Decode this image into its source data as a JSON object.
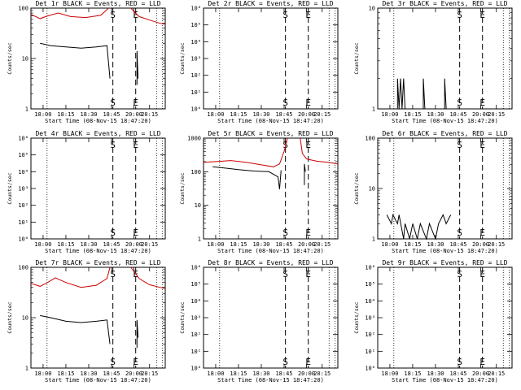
{
  "chart_data": [
    {
      "type": "line",
      "title": "Det 1r BLACK = Events, RED = LLD",
      "xlabel": "Start Time (08-Nov-15 18:47:20)",
      "ylabel": "Counts/sec",
      "yscale": "log",
      "ylim": [
        1,
        100
      ],
      "yticks": [
        {
          "v": 1,
          "label": "1"
        },
        {
          "v": 10,
          "label": "10"
        },
        {
          "v": 100,
          "label": "100"
        }
      ],
      "xlim": [
        "17:52",
        "20:30"
      ],
      "xticks": [
        "18:00",
        "18:15",
        "18:30",
        "18:45",
        "20:00",
        "20:15"
      ],
      "markers": [
        {
          "x": "18:46",
          "label": "S"
        },
        {
          "x": "19:55",
          "label": "E"
        }
      ],
      "series": [
        {
          "name": "Events",
          "color": "#000000",
          "points": [
            [
              "17:58",
              20
            ],
            [
              "18:05",
              18
            ],
            [
              "18:15",
              17
            ],
            [
              "18:25",
              16
            ],
            [
              "18:35",
              17
            ],
            [
              "18:42",
              18
            ],
            [
              "18:44",
              4
            ]
          ]
        },
        {
          "name": "LLD",
          "color": "#cc0000",
          "points": [
            [
              "17:52",
              75
            ],
            [
              "17:58",
              62
            ],
            [
              "18:03",
              70
            ],
            [
              "18:10",
              80
            ],
            [
              "18:18",
              68
            ],
            [
              "18:28",
              65
            ],
            [
              "18:38",
              72
            ],
            [
              "18:43",
              100
            ]
          ]
        },
        {
          "name": "LLD (after)",
          "color": "#cc0000",
          "points": [
            [
              "19:57",
              100
            ],
            [
              "20:05",
              68
            ],
            [
              "20:15",
              58
            ],
            [
              "20:25",
              50
            ],
            [
              "20:30",
              48
            ]
          ]
        },
        {
          "name": "Events (after)",
          "color": "#000000",
          "points": [
            [
              "20:03",
              3
            ],
            [
              "20:03",
              14
            ],
            [
              "20:04",
              4
            ]
          ]
        }
      ]
    },
    {
      "type": "line",
      "title": "Det 2r BLACK = Events, RED = LLD",
      "xlabel": "Start Time (08-Nov-15 18:47:20)",
      "ylabel": "Counts/sec",
      "yscale": "log",
      "ylim": [
        1,
        1000000
      ],
      "yticks": [
        {
          "v": 1,
          "label": "10⁰"
        },
        {
          "v": 10,
          "label": "10¹"
        },
        {
          "v": 100,
          "label": "10²"
        },
        {
          "v": 1000,
          "label": "10³"
        },
        {
          "v": 10000,
          "label": "10⁴"
        },
        {
          "v": 100000,
          "label": "10⁵"
        },
        {
          "v": 1000000,
          "label": "10⁶"
        }
      ],
      "xlim": [
        "17:52",
        "20:30"
      ],
      "xticks": [
        "18:00",
        "18:15",
        "18:30",
        "18:45",
        "20:00",
        "20:15"
      ],
      "markers": [
        {
          "x": "18:46",
          "label": "S"
        },
        {
          "x": "19:55",
          "label": "E"
        }
      ],
      "series": []
    },
    {
      "type": "line",
      "title": "Det 3r BLACK = Events, RED = LLD",
      "xlabel": "Start Time (08-Nov-15 18:47:20)",
      "ylabel": "Counts/sec",
      "yscale": "log",
      "ylim": [
        1,
        10
      ],
      "yticks": [
        {
          "v": 1,
          "label": "1"
        },
        {
          "v": 10,
          "label": "10"
        }
      ],
      "xlim": [
        "17:52",
        "20:30"
      ],
      "xticks": [
        "18:00",
        "18:15",
        "18:30",
        "18:45",
        "20:00",
        "20:15"
      ],
      "markers": [
        {
          "x": "18:46",
          "label": "S"
        },
        {
          "x": "19:55",
          "label": "E"
        }
      ],
      "series": [
        {
          "name": "Events",
          "color": "#000000",
          "points": [
            [
              "18:05",
              1
            ],
            [
              "18:05",
              2
            ],
            [
              "18:06",
              1
            ],
            [
              "18:07",
              2
            ],
            [
              "18:08",
              1
            ],
            [
              "18:09",
              2
            ],
            [
              "18:10",
              1
            ],
            [
              "18:22",
              1
            ],
            [
              "18:22",
              2
            ],
            [
              "18:23",
              1
            ],
            [
              "18:36",
              1
            ],
            [
              "18:36",
              2
            ],
            [
              "18:37",
              1
            ]
          ]
        }
      ]
    },
    {
      "type": "line",
      "title": "Det 4r BLACK = Events, RED = LLD",
      "xlabel": "Start Time (08-Nov-15 18:47:20)",
      "ylabel": "Counts/sec",
      "yscale": "log",
      "ylim": [
        1,
        1000000
      ],
      "yticks": [
        {
          "v": 1,
          "label": "10⁰"
        },
        {
          "v": 10,
          "label": "10¹"
        },
        {
          "v": 100,
          "label": "10²"
        },
        {
          "v": 1000,
          "label": "10³"
        },
        {
          "v": 10000,
          "label": "10⁴"
        },
        {
          "v": 100000,
          "label": "10⁵"
        },
        {
          "v": 1000000,
          "label": "10⁶"
        }
      ],
      "xlim": [
        "17:52",
        "20:30"
      ],
      "xticks": [
        "18:00",
        "18:15",
        "18:30",
        "18:45",
        "20:00",
        "20:15"
      ],
      "markers": [
        {
          "x": "18:46",
          "label": "S"
        },
        {
          "x": "19:55",
          "label": "E"
        }
      ],
      "series": []
    },
    {
      "type": "line",
      "title": "Det 5r BLACK = Events, RED = LLD",
      "xlabel": "Start Time (08-Nov-15 18:47:20)",
      "ylabel": "Counts/sec",
      "yscale": "log",
      "ylim": [
        1,
        1000
      ],
      "yticks": [
        {
          "v": 1,
          "label": "1"
        },
        {
          "v": 10,
          "label": "10"
        },
        {
          "v": 100,
          "label": "100"
        },
        {
          "v": 1000,
          "label": "1000"
        }
      ],
      "xlim": [
        "17:52",
        "20:30"
      ],
      "xticks": [
        "18:00",
        "18:15",
        "18:30",
        "18:45",
        "20:00",
        "20:15"
      ],
      "markers": [
        {
          "x": "18:46",
          "label": "S"
        },
        {
          "x": "19:55",
          "label": "E"
        }
      ],
      "series": [
        {
          "name": "LLD",
          "color": "#cc0000",
          "points": [
            [
              "17:52",
              190
            ],
            [
              "18:00",
              200
            ],
            [
              "18:10",
              215
            ],
            [
              "18:20",
              190
            ],
            [
              "18:30",
              160
            ],
            [
              "18:38",
              140
            ],
            [
              "18:42",
              170
            ],
            [
              "18:45",
              400
            ],
            [
              "18:46",
              1000
            ]
          ]
        },
        {
          "name": "LLD (after)",
          "color": "#cc0000",
          "points": [
            [
              "19:54",
              1000
            ],
            [
              "19:56",
              350
            ],
            [
              "20:00",
              240
            ],
            [
              "20:10",
              205
            ],
            [
              "20:20",
              190
            ],
            [
              "20:30",
              170
            ]
          ]
        },
        {
          "name": "Events",
          "color": "#000000",
          "points": [
            [
              "17:58",
              140
            ],
            [
              "18:05",
              130
            ],
            [
              "18:15",
              115
            ],
            [
              "18:25",
              105
            ],
            [
              "18:35",
              100
            ],
            [
              "18:41",
              70
            ],
            [
              "18:42",
              30
            ],
            [
              "18:43",
              110
            ]
          ]
        },
        {
          "name": "Events (after)",
          "color": "#000000",
          "points": [
            [
              "19:58",
              40
            ],
            [
              "19:58",
              170
            ],
            [
              "19:59",
              100
            ]
          ]
        }
      ]
    },
    {
      "type": "line",
      "title": "Det 6r BLACK = Events, RED = LLD",
      "xlabel": "Start Time (08-Nov-15 18:47:20)",
      "ylabel": "Counts/sec",
      "yscale": "log",
      "ylim": [
        1,
        100
      ],
      "yticks": [
        {
          "v": 1,
          "label": "1"
        },
        {
          "v": 10,
          "label": "10"
        },
        {
          "v": 100,
          "label": "100"
        }
      ],
      "xlim": [
        "17:52",
        "20:30"
      ],
      "xticks": [
        "18:00",
        "18:15",
        "18:30",
        "18:45",
        "20:00",
        "20:15"
      ],
      "markers": [
        {
          "x": "18:46",
          "label": "S"
        },
        {
          "x": "19:55",
          "label": "E"
        }
      ],
      "series": [
        {
          "name": "Events",
          "color": "#000000",
          "points": [
            [
              "17:58",
              3
            ],
            [
              "18:01",
              2
            ],
            [
              "18:02",
              3
            ],
            [
              "18:05",
              2
            ],
            [
              "18:06",
              3
            ],
            [
              "18:09",
              1
            ],
            [
              "18:10",
              2
            ],
            [
              "18:13",
              1
            ],
            [
              "18:15",
              2
            ],
            [
              "18:18",
              1
            ],
            [
              "18:20",
              2
            ],
            [
              "18:24",
              1
            ],
            [
              "18:26",
              2
            ],
            [
              "18:30",
              1
            ],
            [
              "18:32",
              2
            ],
            [
              "18:35",
              3
            ],
            [
              "18:37",
              2
            ],
            [
              "18:40",
              3
            ]
          ]
        }
      ]
    },
    {
      "type": "line",
      "title": "Det 7r BLACK = Events, RED = LLD",
      "xlabel": "Start Time (08-Nov-15 18:47:20)",
      "ylabel": "Counts/sec",
      "yscale": "log",
      "ylim": [
        1,
        100
      ],
      "yticks": [
        {
          "v": 1,
          "label": "1"
        },
        {
          "v": 10,
          "label": "10"
        },
        {
          "v": 100,
          "label": "100"
        }
      ],
      "xlim": [
        "17:52",
        "20:30"
      ],
      "xticks": [
        "18:00",
        "18:15",
        "18:30",
        "18:45",
        "20:00",
        "20:15"
      ],
      "markers": [
        {
          "x": "18:46",
          "label": "S"
        },
        {
          "x": "19:55",
          "label": "E"
        }
      ],
      "series": [
        {
          "name": "Events",
          "color": "#000000",
          "points": [
            [
              "17:58",
              11
            ],
            [
              "18:05",
              10
            ],
            [
              "18:15",
              8.5
            ],
            [
              "18:25",
              8
            ],
            [
              "18:35",
              8.5
            ],
            [
              "18:42",
              9
            ],
            [
              "18:44",
              3
            ]
          ]
        },
        {
          "name": "LLD",
          "color": "#cc0000",
          "points": [
            [
              "17:52",
              48
            ],
            [
              "17:58",
              42
            ],
            [
              "18:03",
              50
            ],
            [
              "18:08",
              62
            ],
            [
              "18:15",
              50
            ],
            [
              "18:25",
              40
            ],
            [
              "18:35",
              44
            ],
            [
              "18:42",
              60
            ],
            [
              "18:44",
              100
            ]
          ]
        },
        {
          "name": "LLD (after)",
          "color": "#cc0000",
          "points": [
            [
              "19:57",
              100
            ],
            [
              "20:05",
              60
            ],
            [
              "20:15",
              45
            ],
            [
              "20:25",
              40
            ],
            [
              "20:30",
              38
            ]
          ]
        },
        {
          "name": "Events (after)",
          "color": "#000000",
          "points": [
            [
              "20:03",
              2.5
            ],
            [
              "20:03",
              9
            ],
            [
              "20:04",
              4
            ]
          ]
        }
      ]
    },
    {
      "type": "line",
      "title": "Det 8r BLACK = Events, RED = LLD",
      "xlabel": "Start Time (08-Nov-15 18:47:20)",
      "ylabel": "Counts/sec",
      "yscale": "log",
      "ylim": [
        1,
        1000000
      ],
      "yticks": [
        {
          "v": 1,
          "label": "10⁰"
        },
        {
          "v": 10,
          "label": "10¹"
        },
        {
          "v": 100,
          "label": "10²"
        },
        {
          "v": 1000,
          "label": "10³"
        },
        {
          "v": 10000,
          "label": "10⁴"
        },
        {
          "v": 100000,
          "label": "10⁵"
        },
        {
          "v": 1000000,
          "label": "10⁶"
        }
      ],
      "xlim": [
        "17:52",
        "20:30"
      ],
      "xticks": [
        "18:00",
        "18:15",
        "18:30",
        "18:45",
        "20:00",
        "20:15"
      ],
      "markers": [
        {
          "x": "18:46",
          "label": "S"
        },
        {
          "x": "19:55",
          "label": "E"
        }
      ],
      "series": []
    },
    {
      "type": "line",
      "title": "Det 9r BLACK = Events, RED = LLD",
      "xlabel": "Start Time (08-Nov-15 18:47:20)",
      "ylabel": "Counts/sec",
      "yscale": "log",
      "ylim": [
        1,
        1000000
      ],
      "yticks": [
        {
          "v": 1,
          "label": "10⁰"
        },
        {
          "v": 10,
          "label": "10¹"
        },
        {
          "v": 100,
          "label": "10²"
        },
        {
          "v": 1000,
          "label": "10³"
        },
        {
          "v": 10000,
          "label": "10⁴"
        },
        {
          "v": 100000,
          "label": "10⁵"
        },
        {
          "v": 1000000,
          "label": "10⁶"
        }
      ],
      "xlim": [
        "17:52",
        "20:30"
      ],
      "xticks": [
        "18:00",
        "18:15",
        "18:30",
        "18:45",
        "20:00",
        "20:15"
      ],
      "markers": [
        {
          "x": "18:46",
          "label": "S"
        },
        {
          "x": "19:55",
          "label": "E"
        }
      ],
      "series": []
    }
  ]
}
